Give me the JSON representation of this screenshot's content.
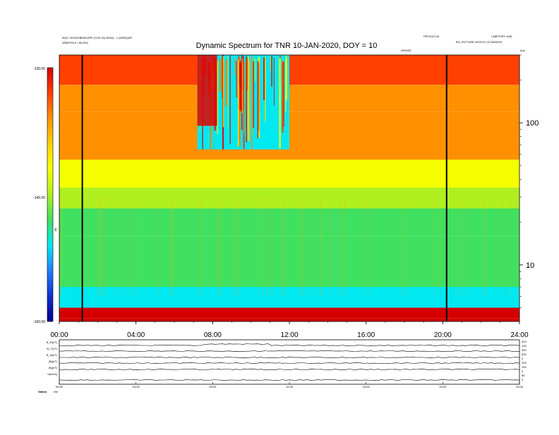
{
  "header": {
    "title": "Dynamic Spectrum for TNR 10-JAN-2020, DOY = 10",
    "left_line1": "BG0-+SIGDOBR4DORP (TDS SQ BGW) - 1 (9DRQ)SP",
    "left_line2": "ASB/PH3.3 =90.DD2",
    "right_a": "PROCD3.40",
    "right_b": "L3BRT0RT=9dD",
    "right_c": "BG_RICTURE 2020+01 10 0DDD3S",
    "sub_right": "DRIVEE",
    "unit_right": "kHz"
  },
  "colorbar": {
    "label": "dB",
    "tick_labels": [
      "-130.00",
      "-145.00",
      "-160.00"
    ],
    "colors": [
      "#d40000",
      "#ff4000",
      "#ff9000",
      "#ffd200",
      "#f5ff00",
      "#b0f020",
      "#40e060",
      "#00e8f0",
      "#2080ff",
      "#1030d0",
      "#000090"
    ]
  },
  "chart_data": {
    "type": "heatmap",
    "title": "Dynamic Spectrum for TNR 10-JAN-2020, DOY = 10",
    "x_tick_labels": [
      "00:00",
      "04:00",
      "08:00",
      "12:00",
      "16:00",
      "20:00",
      "24:00"
    ],
    "x_ticks_hours": [
      0,
      4,
      8,
      12,
      16,
      20,
      24
    ],
    "xlim_hours": [
      0,
      24
    ],
    "y_scale": "log",
    "ylim_khz": [
      4,
      300
    ],
    "y_tick_labels": [
      "100",
      "10"
    ],
    "y_ticks_khz": [
      100,
      10
    ],
    "zlim_db": [
      -160,
      -130
    ],
    "vertical_markers_hours": [
      1.2,
      20.2
    ],
    "bands": [
      {
        "f_low": 185,
        "f_high": 300,
        "level_db": -133.5
      },
      {
        "f_low": 120,
        "f_high": 185,
        "level_db": -135.5
      },
      {
        "f_low": 55,
        "f_high": 120,
        "level_db": -137
      },
      {
        "f_low": 35,
        "f_high": 55,
        "level_db": -141
      },
      {
        "f_low": 25,
        "f_high": 35,
        "level_db": -143.5
      },
      {
        "f_low": 16,
        "f_high": 25,
        "level_db": -146.5
      },
      {
        "f_low": 7,
        "f_high": 16,
        "level_db": -149
      },
      {
        "f_low": 5,
        "f_high": 7,
        "level_db": -151
      },
      {
        "f_low": 4.2,
        "f_high": 5,
        "level_db": -130
      },
      {
        "f_low": 4,
        "f_high": 4.2,
        "level_db": -130
      }
    ],
    "burst": {
      "t_start_hours": 7.2,
      "t_end_hours": 12.0,
      "f_low_khz": 65,
      "f_high_khz": 300
    }
  },
  "lower_panel": {
    "left_labels": [
      "B_R(nT)",
      "B_T(nT)",
      "B_N(nT)",
      "|B|(nT)",
      "|B|(nT)",
      "V(km/s)"
    ],
    "right_labels": [
      "200",
      "100",
      "300",
      "500",
      "0",
      "200",
      "100",
      "0",
      "50",
      "0"
    ],
    "x_tick_labels": [
      "00:00",
      "04:00",
      "08:00",
      "12:00",
      "16:00",
      "20:00",
      "24:00"
    ],
    "footer_label": "Status",
    "footer_value": "nW"
  }
}
